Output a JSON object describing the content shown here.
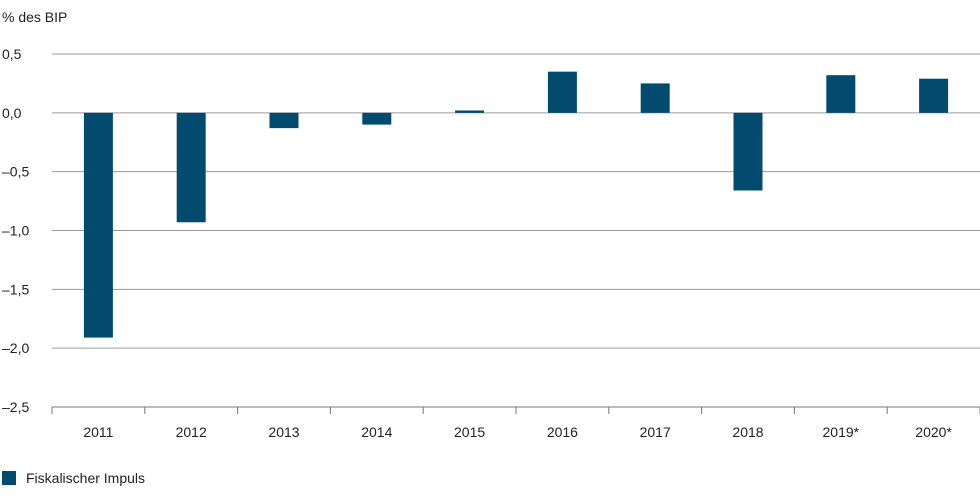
{
  "chart_data": {
    "type": "bar",
    "y_unit_label": "% des BIP",
    "categories": [
      "2011",
      "2012",
      "2013",
      "2014",
      "2015",
      "2016",
      "2017",
      "2018",
      "2019*",
      "2020*"
    ],
    "series": [
      {
        "name": "Fiskalischer Impuls",
        "color": "#024b6e",
        "values": [
          -1.91,
          -0.93,
          -0.13,
          -0.1,
          0.02,
          0.35,
          0.25,
          -0.66,
          0.32,
          0.29
        ]
      }
    ],
    "ylim": [
      -2.5,
      0.5
    ],
    "yticks": [
      0.5,
      0.0,
      -0.5,
      -1.0,
      -1.5,
      -2.0,
      -2.5
    ],
    "ytick_labels": [
      "0,5",
      "0,0",
      "–0,5",
      "–1,0",
      "–1,5",
      "–2,0",
      "–2,5"
    ],
    "grid": true,
    "legend_position": "bottom-left"
  }
}
